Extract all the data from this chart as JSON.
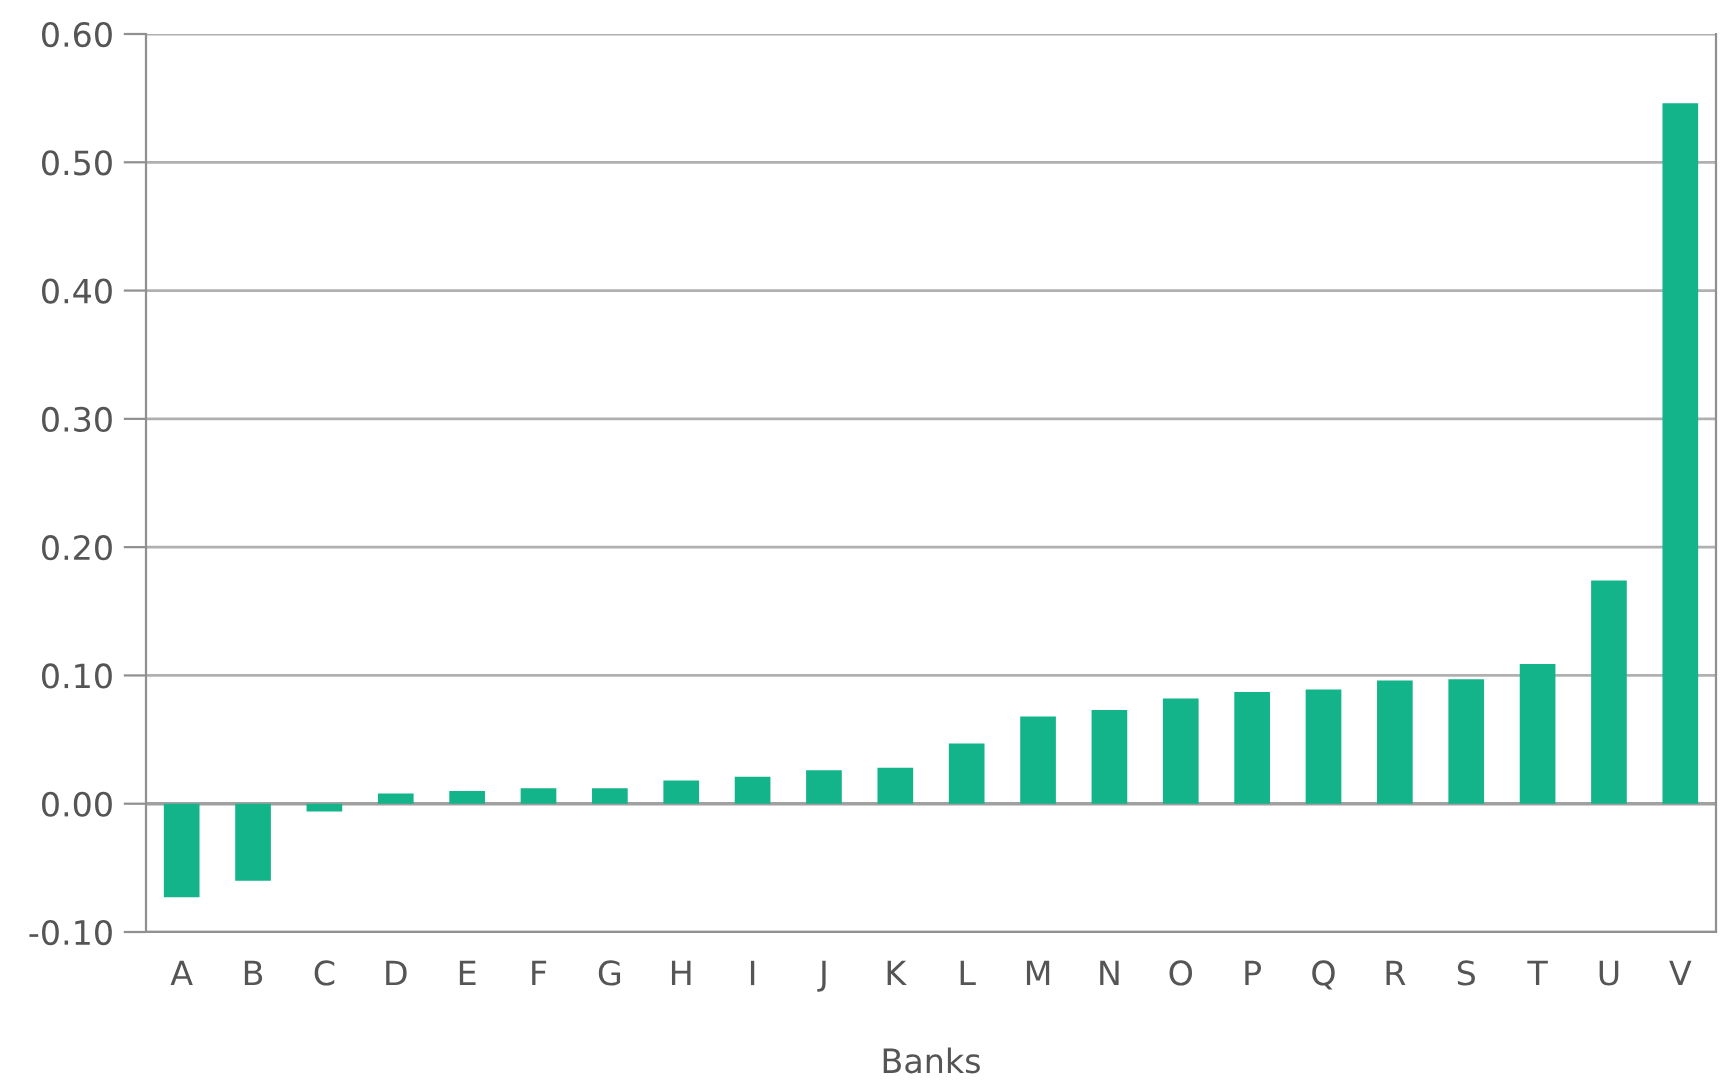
{
  "chart_data": {
    "type": "bar",
    "xlabel": "Banks",
    "categories": [
      "A",
      "B",
      "C",
      "D",
      "E",
      "F",
      "G",
      "H",
      "I",
      "J",
      "K",
      "L",
      "M",
      "N",
      "O",
      "P",
      "Q",
      "R",
      "S",
      "T",
      "U",
      "V"
    ],
    "values": [
      -0.073,
      -0.06,
      -0.006,
      0.008,
      0.01,
      0.012,
      0.012,
      0.018,
      0.021,
      0.026,
      0.028,
      0.047,
      0.068,
      0.073,
      0.082,
      0.087,
      0.089,
      0.096,
      0.097,
      0.109,
      0.174,
      0.546
    ],
    "color": "#13b48a",
    "ylim": [
      -0.1,
      0.6
    ],
    "yticks": [
      {
        "value": -0.1,
        "label": "-0.10"
      },
      {
        "value": 0,
        "label": "0.00"
      },
      {
        "value": 0.1,
        "label": "0.10"
      },
      {
        "value": 0.2,
        "label": "0.20"
      },
      {
        "value": 0.3,
        "label": "0.30"
      },
      {
        "value": 0.4,
        "label": "0.40"
      },
      {
        "value": 0.5,
        "label": "0.50"
      },
      {
        "value": 0.6,
        "label": "0.60"
      }
    ],
    "grid": "y"
  }
}
